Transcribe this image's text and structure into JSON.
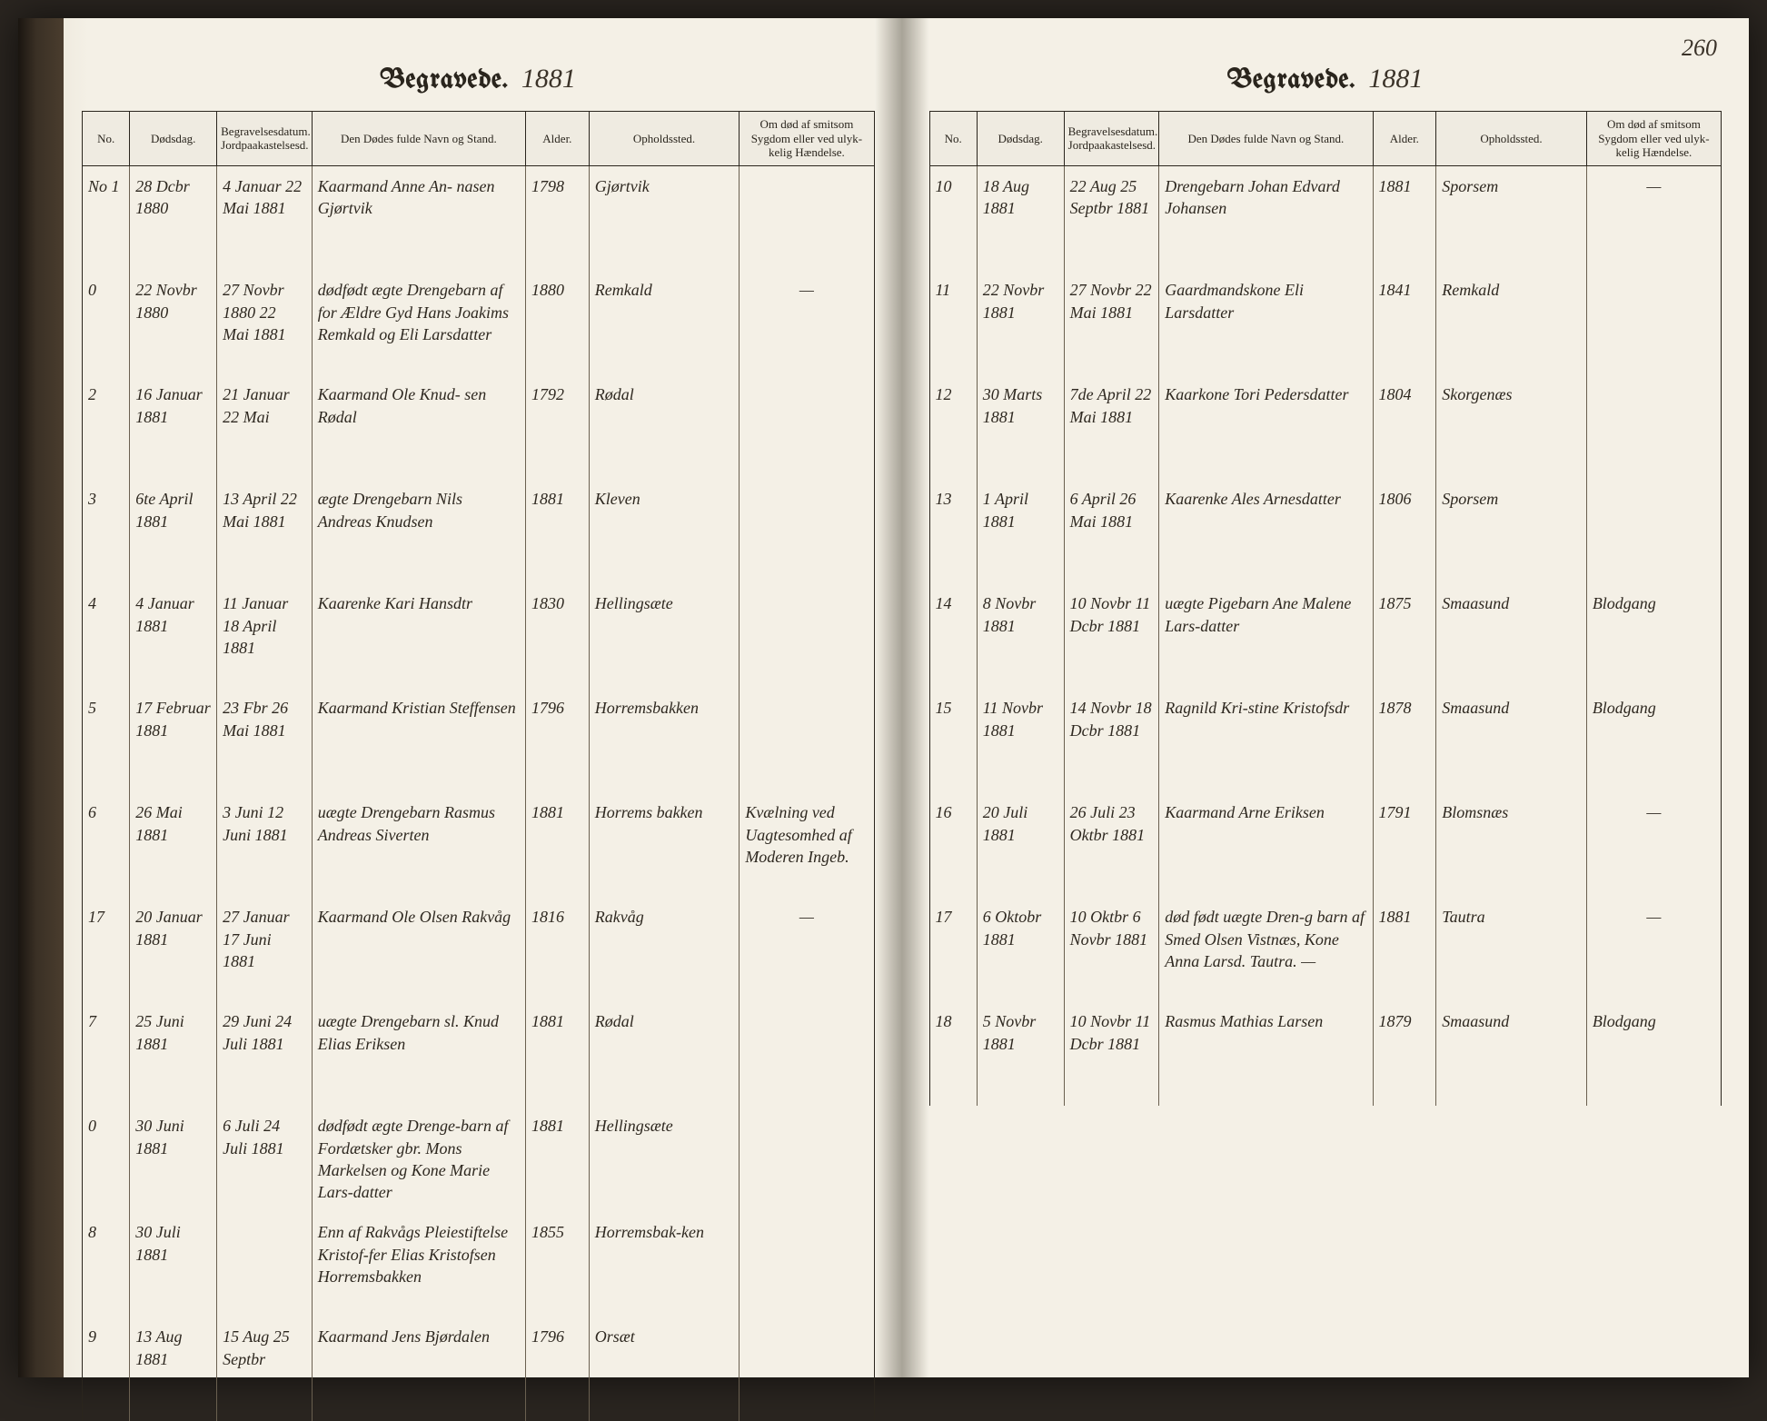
{
  "pageNumber": "260",
  "header": {
    "printed": "Begravede.",
    "year": "1881"
  },
  "columns": {
    "no": "No.",
    "dodsdag": "Dødsdag.",
    "begrav": "Begravelsesdatum. Jordpaakastelsesd.",
    "navn": "Den Dødes fulde Navn og Stand.",
    "alder": "Alder.",
    "opholds": "Opholdssted.",
    "notes": "Om død af smitsom Sygdom eller ved ulyk-kelig Hændelse."
  },
  "leftRows": [
    {
      "no": "No 1",
      "d1": "28 Dcbr 1880",
      "d2": "4 Januar 22 Mai 1881",
      "name": "Kaarmand Anne An-\nnasen Gjørtvik",
      "age": "1798",
      "place": "Gjørtvik",
      "note": ""
    },
    {
      "no": "0",
      "d1": "22 Novbr 1880",
      "d2": "27 Novbr 1880 22 Mai 1881",
      "name": "dødfødt ægte Drengebarn af for Ældre Gyd Hans Joakims Remkald og Eli Larsdatter",
      "age": "1880",
      "place": "Remkald",
      "note": "—"
    },
    {
      "no": "2",
      "d1": "16 Januar 1881",
      "d2": "21 Januar 22 Mai",
      "name": "Kaarmand Ole Knud-\nsen Rødal",
      "age": "1792",
      "place": "Rødal",
      "note": ""
    },
    {
      "no": "3",
      "d1": "6te April 1881",
      "d2": "13 April 22 Mai 1881",
      "name": "ægte Drengebarn Nils Andreas Knudsen",
      "age": "1881",
      "place": "Kleven",
      "note": ""
    },
    {
      "no": "4",
      "d1": "4 Januar 1881",
      "d2": "11 Januar 18 April 1881",
      "name": "Kaarenke Kari Hansdtr",
      "age": "1830",
      "place": "Hellingsæte",
      "note": ""
    },
    {
      "no": "5",
      "d1": "17 Februar 1881",
      "d2": "23 Fbr 26 Mai 1881",
      "name": "Kaarmand Kristian Steffensen",
      "age": "1796",
      "place": "Horremsbakken",
      "note": ""
    },
    {
      "no": "6",
      "d1": "26 Mai 1881",
      "d2": "3 Juni 12 Juni 1881",
      "name": "uægte Drengebarn Rasmus Andreas Siverten",
      "age": "1881",
      "place": "Horrems bakken",
      "note": "Kvælning ved Uagtesomhed af Moderen Ingeb."
    },
    {
      "no": "17",
      "d1": "20 Januar 1881",
      "d2": "27 Januar 17 Juni 1881",
      "name": "Kaarmand Ole Olsen Rakvåg",
      "age": "1816",
      "place": "Rakvåg",
      "note": "—"
    },
    {
      "no": "7",
      "d1": "25 Juni 1881",
      "d2": "29 Juni 24 Juli 1881",
      "name": "uægte Drengebarn sl. Knud Elias Eriksen",
      "age": "1881",
      "place": "Rødal",
      "note": ""
    },
    {
      "no": "0",
      "d1": "30 Juni 1881",
      "d2": "6 Juli 24 Juli 1881",
      "name": "dødfødt ægte Drenge-barn af Fordætsker gbr. Mons Markelsen og Kone Marie Lars-datter",
      "age": "1881",
      "place": "Hellingsæte",
      "note": ""
    },
    {
      "no": "8",
      "d1": "30 Juli 1881",
      "d2": "",
      "name": "Enn af Rakvågs Pleiestiftelse Kristof-fer Elias Kristofsen Horremsbakken",
      "age": "1855",
      "place": "Horremsbak-ken",
      "note": ""
    },
    {
      "no": "9",
      "d1": "13 Aug 1881",
      "d2": "15 Aug 25 Septbr",
      "name": "Kaarmand Jens Bjørdalen",
      "age": "1796",
      "place": "Orsæt",
      "note": ""
    }
  ],
  "rightRows": [
    {
      "no": "10",
      "d1": "18 Aug 1881",
      "d2": "22 Aug 25 Septbr 1881",
      "name": "Drengebarn Johan Edvard Johansen",
      "age": "1881",
      "place": "Sporsem",
      "note": "—"
    },
    {
      "no": "11",
      "d1": "22 Novbr 1881",
      "d2": "27 Novbr 22 Mai 1881",
      "name": "Gaardmandskone Eli Larsdatter",
      "age": "1841",
      "place": "Remkald",
      "note": ""
    },
    {
      "no": "12",
      "d1": "30 Marts 1881",
      "d2": "7de April 22 Mai 1881",
      "name": "Kaarkone Tori Pedersdatter",
      "age": "1804",
      "place": "Skorgenæs",
      "note": ""
    },
    {
      "no": "13",
      "d1": "1 April 1881",
      "d2": "6 April 26 Mai 1881",
      "name": "Kaarenke Ales Arnesdatter",
      "age": "1806",
      "place": "Sporsem",
      "note": ""
    },
    {
      "no": "14",
      "d1": "8 Novbr 1881",
      "d2": "10 Novbr 11 Dcbr 1881",
      "name": "uægte Pigebarn Ane Malene Lars-datter",
      "age": "1875",
      "place": "Smaasund",
      "note": "Blodgang"
    },
    {
      "no": "15",
      "d1": "11 Novbr 1881",
      "d2": "14 Novbr 18 Dcbr 1881",
      "name": "Ragnild Kri-stine Kristofsdr",
      "age": "1878",
      "place": "Smaasund",
      "note": "Blodgang"
    },
    {
      "no": "16",
      "d1": "20 Juli 1881",
      "d2": "26 Juli 23 Oktbr 1881",
      "name": "Kaarmand Arne Eriksen",
      "age": "1791",
      "place": "Blomsnæs",
      "note": "—"
    },
    {
      "no": "17",
      "d1": "6 Oktobr 1881",
      "d2": "10 Oktbr 6 Novbr 1881",
      "name": "død født uægte Dren-g barn af Smed Olsen Vistnæs, Kone Anna Larsd. Tautra. —",
      "age": "1881",
      "place": "Tautra",
      "note": "—"
    },
    {
      "no": "18",
      "d1": "5 Novbr 1881",
      "d2": "10 Novbr 11 Dcbr 1881",
      "name": "Rasmus Mathias Larsen",
      "age": "1879",
      "place": "Smaasund",
      "note": "Blodgang"
    }
  ]
}
